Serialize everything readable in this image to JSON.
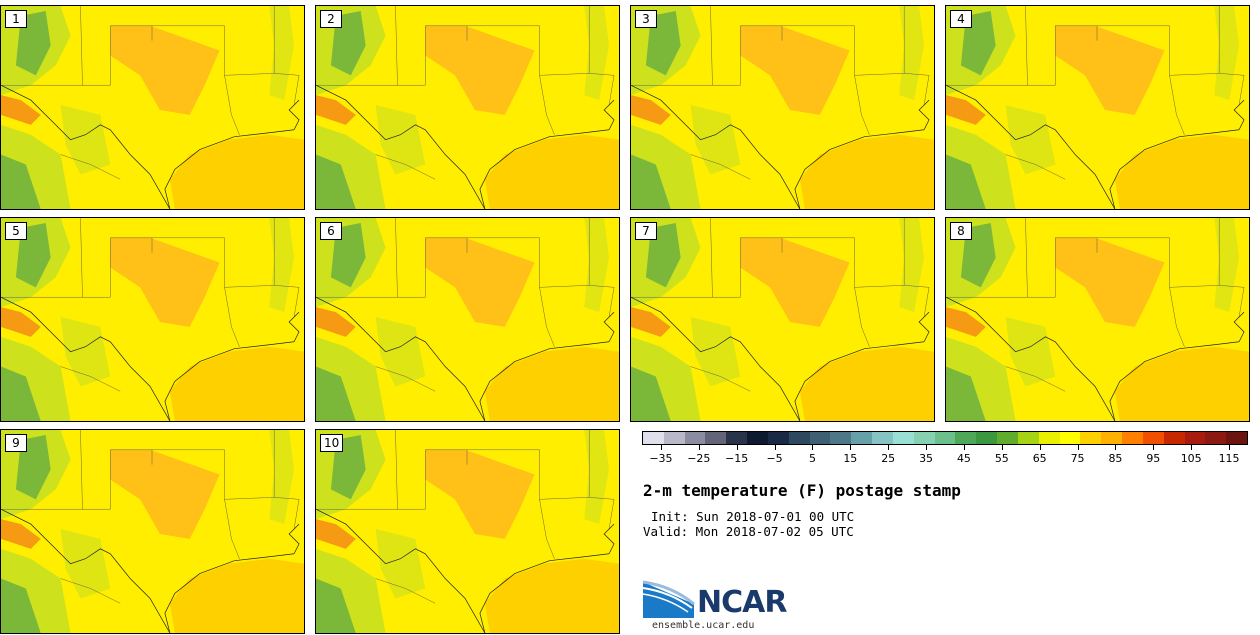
{
  "panels": [
    {
      "label": "1"
    },
    {
      "label": "2"
    },
    {
      "label": "3"
    },
    {
      "label": "4"
    },
    {
      "label": "5"
    },
    {
      "label": "6"
    },
    {
      "label": "7"
    },
    {
      "label": "8"
    },
    {
      "label": "9"
    },
    {
      "label": "10"
    }
  ],
  "colorbar": {
    "colors": [
      "#e0e0ec",
      "#b8b8c8",
      "#8c8ca0",
      "#646478",
      "#2a3448",
      "#0e1a30",
      "#1a2a44",
      "#2e4860",
      "#3e6072",
      "#4e7888",
      "#66a0a8",
      "#86c4c4",
      "#98e0d4",
      "#86d2b0",
      "#6cc08c",
      "#4ea858",
      "#3c9840",
      "#60ac2c",
      "#a6d414",
      "#e8f000",
      "#ffff00",
      "#ffd000",
      "#ffb000",
      "#ff8000",
      "#f05000",
      "#c82800",
      "#a81c10",
      "#8c1a10",
      "#6c1410"
    ],
    "tick_values": [
      -35,
      -25,
      -15,
      -5,
      5,
      15,
      25,
      35,
      45,
      55,
      65,
      75,
      85,
      95,
      105,
      115
    ],
    "tick_labels": [
      "−35",
      "−25",
      "−15",
      "−5",
      "5",
      "15",
      "25",
      "35",
      "45",
      "55",
      "65",
      "75",
      "85",
      "95",
      "105",
      "115"
    ],
    "min": -40,
    "max": 120
  },
  "title": "2-m temperature (F) postage stamp",
  "init": "Init: Sun 2018-07-01 00 UTC",
  "valid": "Valid: Mon 2018-07-02 05 UTC",
  "logo": {
    "text": "NCAR",
    "url": "ensemble.ucar.edu"
  },
  "map_colors": {
    "land": "#ffee00",
    "gulf": "#ffd000",
    "hot": "#ffb020",
    "cool": "#c8e020",
    "green": "#6cb040",
    "red": "#f06020"
  }
}
